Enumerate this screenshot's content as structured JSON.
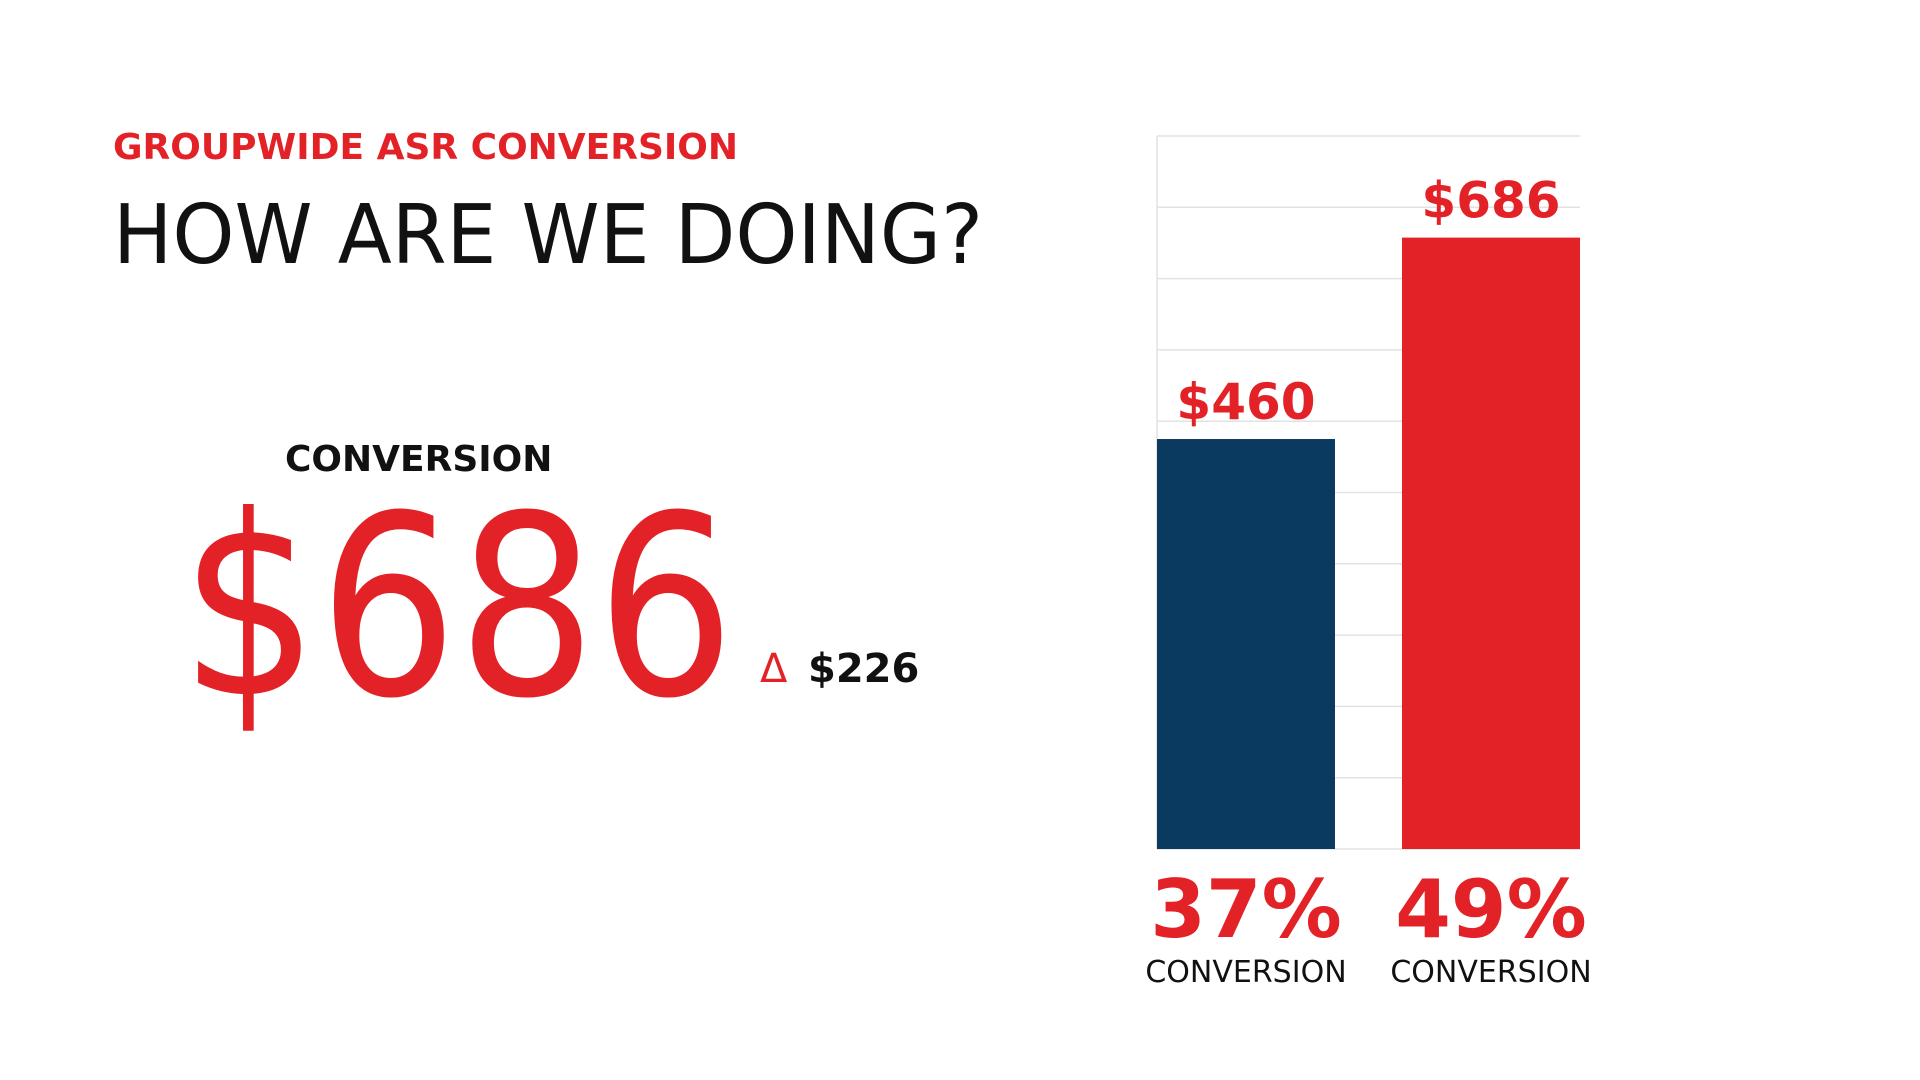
{
  "header": {
    "kicker": "GROUPWIDE ASR CONVERSION",
    "title": "HOW ARE WE DOING?"
  },
  "kpi": {
    "label": "CONVERSION",
    "value": "$686",
    "delta_symbol": "Δ",
    "delta": "$226"
  },
  "chart_data": {
    "type": "bar",
    "categories": [
      "CONVERSION",
      "CONVERSION"
    ],
    "values": [
      460,
      686
    ],
    "value_labels": [
      "$460",
      "$686"
    ],
    "colors": [
      "#0a3a60",
      "#e32228"
    ],
    "conversion_rates": [
      37,
      49
    ],
    "conversion_rate_labels": [
      "37%",
      "49%"
    ],
    "ylim": [
      0,
      800
    ],
    "yticks": [
      0,
      80,
      160,
      240,
      320,
      400,
      480,
      560,
      640,
      720,
      800
    ],
    "grid": true
  }
}
